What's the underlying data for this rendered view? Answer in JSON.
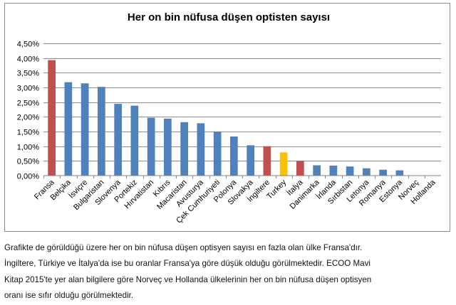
{
  "chart_data": {
    "type": "bar",
    "title": "Her on bin nüfusa düşen optisten sayısı",
    "xlabel": "",
    "ylabel": "",
    "ylim": [
      0,
      0.045
    ],
    "yticks": [
      "0,00%",
      "0,50%",
      "1,00%",
      "1,50%",
      "2,00%",
      "2,50%",
      "3,00%",
      "3,50%",
      "4,00%",
      "4,50%"
    ],
    "grid": true,
    "legend": "none",
    "categories": [
      "Fransa",
      "Belçika",
      "İsviçre",
      "Bulgaristan",
      "Slovenya",
      "Portekiz",
      "Hırvatistan",
      "Kıbrıs",
      "Macaristan",
      "Avusturya",
      "Çek Cumhuriyeti",
      "Polonya",
      "Slovakya",
      "İngiltere",
      "Turkey",
      "İtalya",
      "Danimarka",
      "İrlanda",
      "Sırbistan",
      "Letonya",
      "Romanya",
      "Estonya",
      "Norveç",
      "Hollanda"
    ],
    "values": [
      0.0393,
      0.0318,
      0.0314,
      0.0302,
      0.0244,
      0.0238,
      0.0197,
      0.0194,
      0.0182,
      0.0178,
      0.015,
      0.0133,
      0.0103,
      0.01,
      0.0079,
      0.005,
      0.0035,
      0.0034,
      0.0031,
      0.0025,
      0.002,
      0.0018,
      0,
      0
    ],
    "colors": [
      "#c0504d",
      "#4f81bd",
      "#4f81bd",
      "#4f81bd",
      "#4f81bd",
      "#4f81bd",
      "#4f81bd",
      "#4f81bd",
      "#4f81bd",
      "#4f81bd",
      "#4f81bd",
      "#4f81bd",
      "#4f81bd",
      "#c0504d",
      "#ffc000",
      "#c0504d",
      "#4f81bd",
      "#4f81bd",
      "#4f81bd",
      "#4f81bd",
      "#4f81bd",
      "#4f81bd",
      "#4f81bd",
      "#4f81bd"
    ]
  },
  "caption": {
    "lines": [
      "Grafikte de görüldüğü üzere her on bin nüfusa düşen optisyen sayısı en fazla olan ülke Fransa'dır.",
      "İngiltere, Türkiye ve İtalya'da ise bu oranlar Fransa'ya göre düşük olduğu görülmektedir. ECOO Mavi",
      "Kitap 2015'te yer alan bilgilere göre Norveç ve Hollanda ülkelerinin her on bin nüfusa düşen optisyen",
      "oranı ise sıfır olduğu görülmektedir."
    ]
  }
}
